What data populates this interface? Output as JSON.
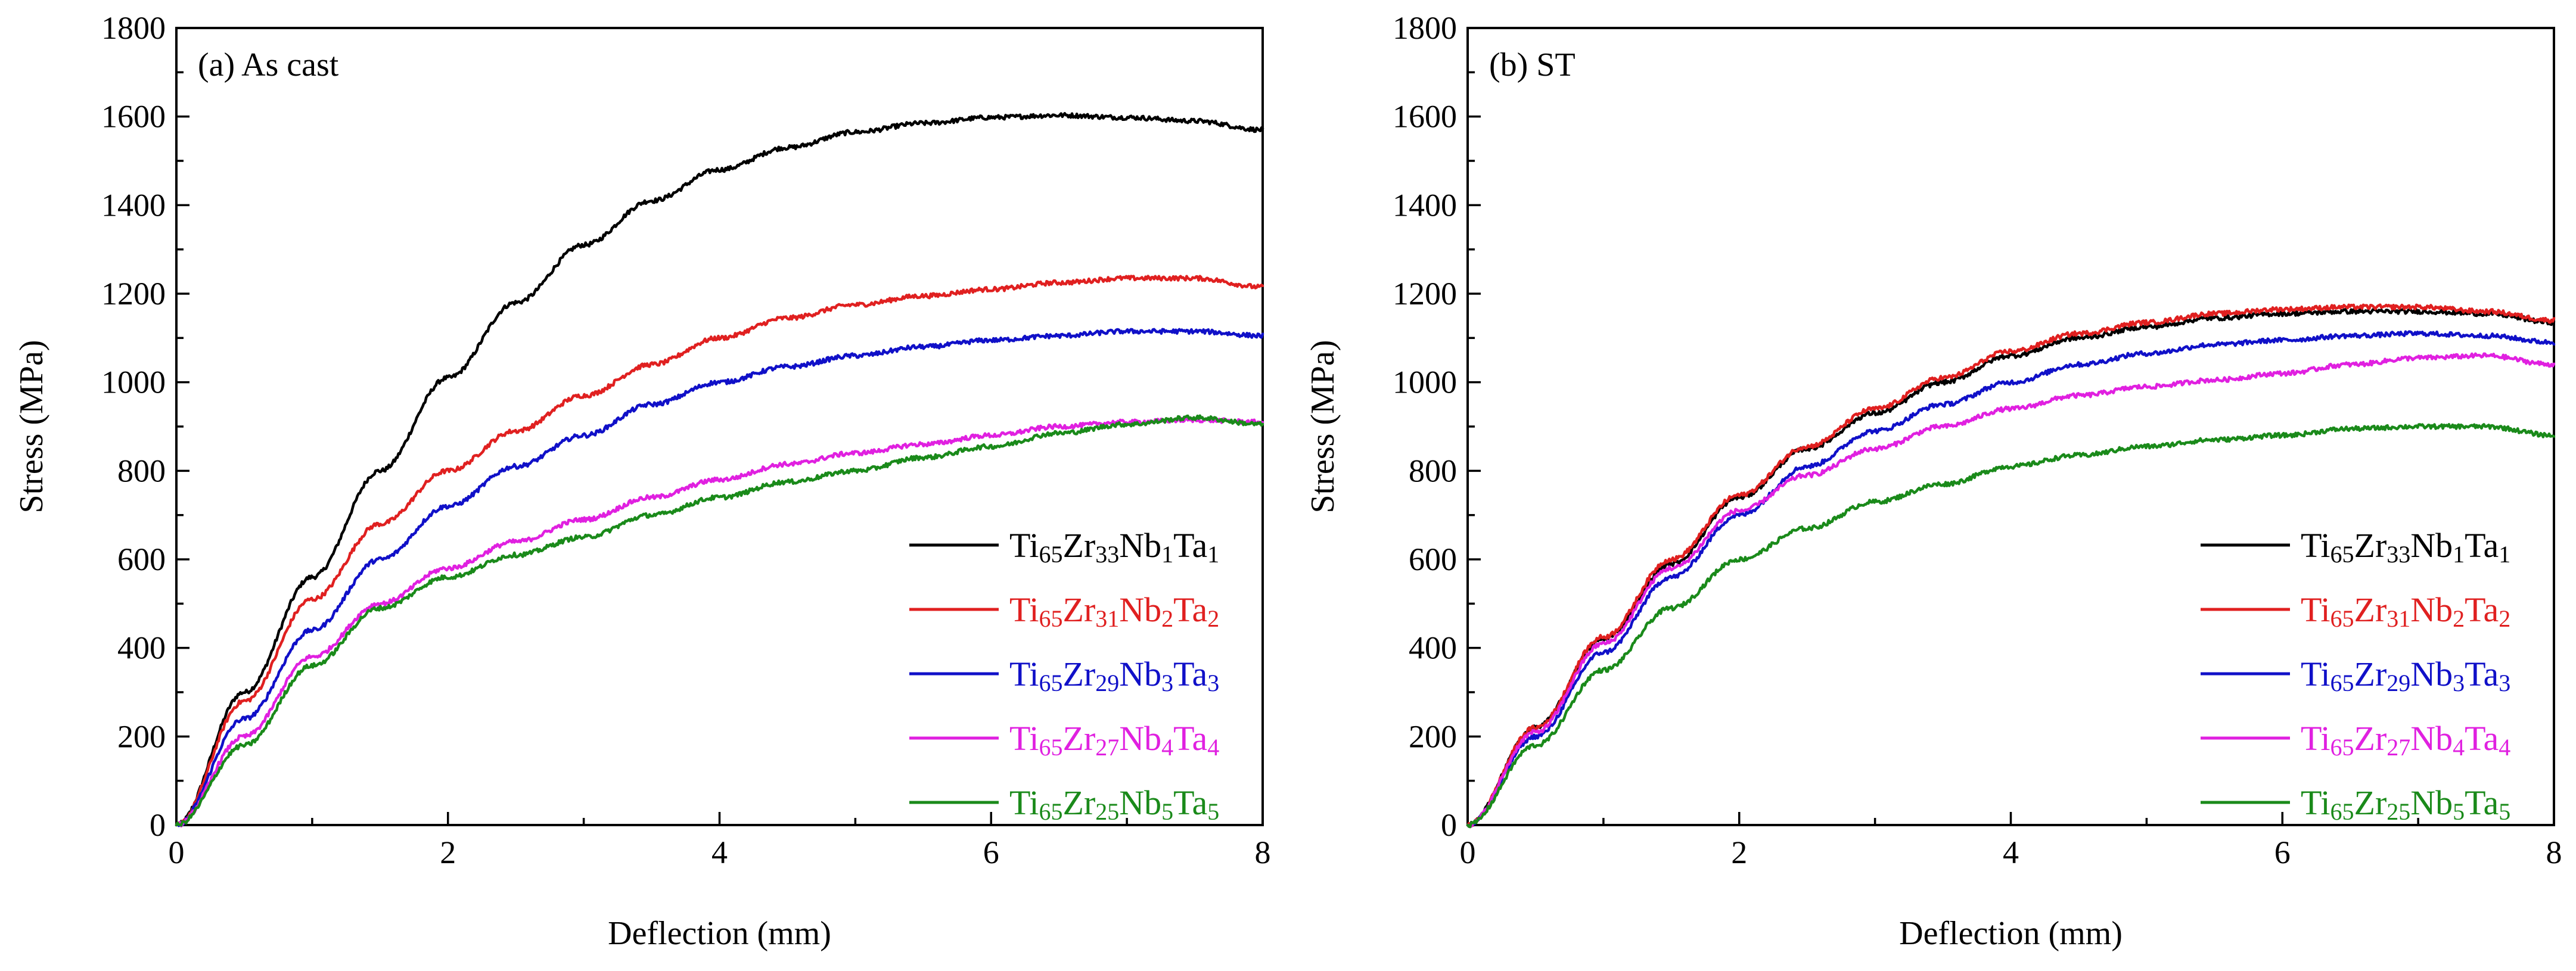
{
  "chart_data": [
    {
      "type": "line",
      "panel_label": "(a) As cast",
      "xlabel": "Deflection (mm)",
      "ylabel": "Stress (MPa)",
      "xlim": [
        0,
        8
      ],
      "ylim": [
        0,
        1800
      ],
      "xticks": [
        "0",
        "2",
        "4",
        "6",
        "8"
      ],
      "yticks": [
        "0",
        "200",
        "400",
        "600",
        "800",
        "1000",
        "1200",
        "1400",
        "1600",
        "1800"
      ],
      "legend_position": "bottom-right",
      "series": [
        {
          "name": "Ti65Zr33Nb1Ta1",
          "label": {
            "ti": "65",
            "zr": "33",
            "nb": "1",
            "ta": "1"
          },
          "color": "#000000",
          "x": [
            0,
            0.5,
            1,
            1.5,
            2,
            2.5,
            3,
            3.5,
            4,
            4.5,
            5,
            5.5,
            6,
            6.5,
            7,
            7.5,
            8
          ],
          "y": [
            0,
            300,
            560,
            800,
            1010,
            1180,
            1310,
            1410,
            1480,
            1530,
            1565,
            1585,
            1598,
            1603,
            1598,
            1590,
            1570
          ]
        },
        {
          "name": "Ti65Zr31Nb2Ta2",
          "label": {
            "ti": "65",
            "zr": "31",
            "nb": "2",
            "ta": "2"
          },
          "color": "#e02020",
          "x": [
            0,
            0.5,
            1,
            1.5,
            2,
            2.5,
            3,
            3.5,
            4,
            4.5,
            5,
            5.5,
            6,
            6.5,
            7,
            7.5,
            8
          ],
          "y": [
            0,
            280,
            510,
            680,
            800,
            890,
            970,
            1040,
            1100,
            1145,
            1175,
            1195,
            1210,
            1225,
            1235,
            1235,
            1215
          ]
        },
        {
          "name": "Ti65Zr29Nb3Ta3",
          "label": {
            "ti": "65",
            "zr": "29",
            "nb": "3",
            "ta": "3"
          },
          "color": "#1010c8",
          "x": [
            0,
            0.5,
            1,
            1.5,
            2,
            2.5,
            3,
            3.5,
            4,
            4.5,
            5,
            5.5,
            6,
            6.5,
            7,
            7.5,
            8
          ],
          "y": [
            0,
            240,
            440,
            600,
            720,
            810,
            880,
            950,
            1000,
            1035,
            1060,
            1080,
            1095,
            1105,
            1115,
            1115,
            1105
          ]
        },
        {
          "name": "Ti65Zr27Nb4Ta4",
          "label": {
            "ti": "65",
            "zr": "27",
            "nb": "4",
            "ta": "4"
          },
          "color": "#e020e0",
          "x": [
            0,
            0.5,
            1,
            1.5,
            2,
            2.5,
            3,
            3.5,
            4,
            4.5,
            5,
            5.5,
            6,
            6.5,
            7,
            7.5,
            8
          ],
          "y": [
            0,
            200,
            380,
            500,
            580,
            640,
            690,
            740,
            780,
            815,
            840,
            860,
            880,
            900,
            910,
            915,
            910
          ]
        },
        {
          "name": "Ti65Zr25Nb5Ta5",
          "label": {
            "ti": "65",
            "zr": "25",
            "nb": "5",
            "ta": "5"
          },
          "color": "#1a8a1a",
          "x": [
            0,
            0.5,
            1,
            1.5,
            2,
            2.5,
            3,
            3.5,
            4,
            4.5,
            5,
            5.5,
            6,
            6.5,
            7,
            7.5,
            8
          ],
          "y": [
            0,
            180,
            360,
            490,
            560,
            610,
            650,
            700,
            740,
            775,
            800,
            830,
            855,
            885,
            905,
            920,
            905
          ]
        }
      ]
    },
    {
      "type": "line",
      "panel_label": "(b) ST",
      "xlabel": "Deflection (mm)",
      "ylabel": "Stress (MPa)",
      "xlim": [
        0,
        8
      ],
      "ylim": [
        0,
        1800
      ],
      "xticks": [
        "0",
        "2",
        "4",
        "6",
        "8"
      ],
      "yticks": [
        "0",
        "200",
        "400",
        "600",
        "800",
        "1000",
        "1200",
        "1400",
        "1600",
        "1800"
      ],
      "legend_position": "bottom-right",
      "series": [
        {
          "name": "Ti65Zr33Nb1Ta1",
          "label": {
            "ti": "65",
            "zr": "33",
            "nb": "1",
            "ta": "1"
          },
          "color": "#000000",
          "x": [
            0,
            0.5,
            1,
            1.5,
            2,
            2.5,
            3,
            3.5,
            4,
            4.5,
            5,
            5.5,
            6,
            6.5,
            7,
            7.5,
            8
          ],
          "y": [
            0,
            220,
            420,
            590,
            740,
            850,
            930,
            1000,
            1060,
            1100,
            1125,
            1145,
            1155,
            1160,
            1160,
            1155,
            1135
          ]
        },
        {
          "name": "Ti65Zr31Nb2Ta2",
          "label": {
            "ti": "65",
            "zr": "31",
            "nb": "2",
            "ta": "2"
          },
          "color": "#e02020",
          "x": [
            0,
            0.5,
            1,
            1.5,
            2,
            2.5,
            3,
            3.5,
            4,
            4.5,
            5,
            5.5,
            6,
            6.5,
            7,
            7.5,
            8
          ],
          "y": [
            0,
            220,
            425,
            600,
            745,
            855,
            940,
            1010,
            1070,
            1110,
            1135,
            1155,
            1165,
            1170,
            1170,
            1160,
            1140
          ]
        },
        {
          "name": "Ti65Zr29Nb3Ta3",
          "label": {
            "ti": "65",
            "zr": "29",
            "nb": "3",
            "ta": "3"
          },
          "color": "#1010c8",
          "x": [
            0,
            0.5,
            1,
            1.5,
            2,
            2.5,
            3,
            3.5,
            4,
            4.5,
            5,
            5.5,
            6,
            6.5,
            7,
            7.5,
            8
          ],
          "y": [
            0,
            200,
            390,
            560,
            700,
            810,
            890,
            950,
            1000,
            1040,
            1065,
            1085,
            1095,
            1105,
            1110,
            1105,
            1090
          ]
        },
        {
          "name": "Ti65Zr27Nb4Ta4",
          "label": {
            "ti": "65",
            "zr": "27",
            "nb": "4",
            "ta": "4"
          },
          "color": "#e020e0",
          "x": [
            0,
            0.5,
            1,
            1.5,
            2,
            2.5,
            3,
            3.5,
            4,
            4.5,
            5,
            5.5,
            6,
            6.5,
            7,
            7.5,
            8
          ],
          "y": [
            0,
            210,
            410,
            580,
            710,
            790,
            850,
            900,
            940,
            970,
            990,
            1005,
            1020,
            1040,
            1055,
            1060,
            1040
          ]
        },
        {
          "name": "Ti65Zr25Nb5Ta5",
          "label": {
            "ti": "65",
            "zr": "25",
            "nb": "5",
            "ta": "5"
          },
          "color": "#1a8a1a",
          "x": [
            0,
            0.5,
            1,
            1.5,
            2,
            2.5,
            3,
            3.5,
            4,
            4.5,
            5,
            5.5,
            6,
            6.5,
            7,
            7.5,
            8
          ],
          "y": [
            0,
            180,
            350,
            490,
            600,
            670,
            730,
            770,
            810,
            835,
            855,
            870,
            880,
            895,
            900,
            900,
            880
          ]
        }
      ]
    }
  ]
}
